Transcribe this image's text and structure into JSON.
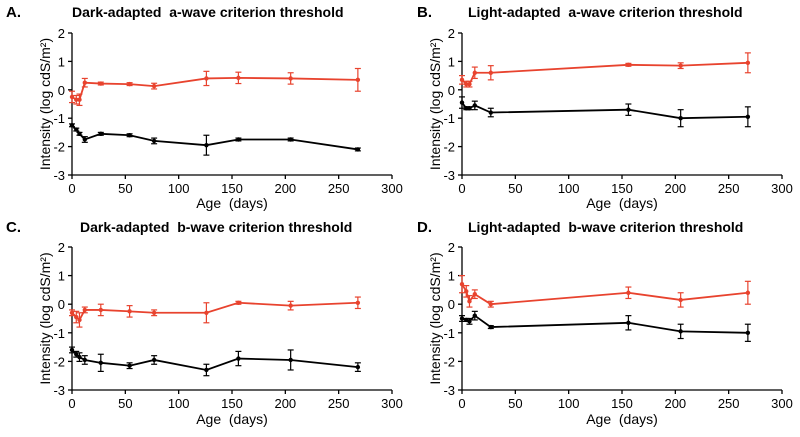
{
  "chart_data": [
    {
      "panel_letter": "A.",
      "type": "line",
      "title": "Dark-adapted  a-wave criterion threshold",
      "xlabel": "Age  (days)",
      "ylabel": "Intensity (log cdS/m²)",
      "xlim": [
        0,
        300
      ],
      "ylim": [
        -3,
        2
      ],
      "xticks": [
        "0",
        "50",
        "100",
        "150",
        "200",
        "250",
        "300"
      ],
      "yticks": [
        "-3",
        "-2",
        "-1",
        "0",
        "1",
        "2"
      ],
      "colors": {
        "red": "#e8432e",
        "black": "#000000"
      },
      "series": [
        {
          "name": "red",
          "x": [
            0,
            4,
            7,
            12,
            27,
            54,
            77,
            126,
            156,
            205,
            268
          ],
          "y": [
            -0.25,
            -0.35,
            -0.35,
            0.25,
            0.22,
            0.2,
            0.13,
            0.4,
            0.42,
            0.4,
            0.35
          ],
          "err": [
            0.2,
            0.15,
            0.2,
            0.15,
            0.05,
            0.05,
            0.1,
            0.25,
            0.2,
            0.2,
            0.4
          ]
        },
        {
          "name": "black",
          "x": [
            0,
            4,
            7,
            12,
            27,
            54,
            77,
            126,
            156,
            205,
            268
          ],
          "y": [
            -1.25,
            -1.4,
            -1.55,
            -1.75,
            -1.55,
            -1.6,
            -1.8,
            -1.95,
            -1.75,
            -1.75,
            -2.1
          ],
          "err": [
            0.05,
            0.05,
            0.05,
            0.1,
            0.05,
            0.05,
            0.1,
            0.35,
            0.05,
            0.05,
            0.05
          ]
        }
      ]
    },
    {
      "panel_letter": "B.",
      "type": "line",
      "title": "Light-adapted  a-wave criterion threshold",
      "xlabel": "Age  (days)",
      "ylabel": "Intensity (log cdS/m²)",
      "xlim": [
        0,
        300
      ],
      "ylim": [
        -3,
        2
      ],
      "xticks": [
        "0",
        "50",
        "100",
        "150",
        "200",
        "250",
        "300"
      ],
      "yticks": [
        "-3",
        "-2",
        "-1",
        "0",
        "1",
        "2"
      ],
      "colors": {
        "red": "#e8432e",
        "black": "#000000"
      },
      "series": [
        {
          "name": "red",
          "x": [
            0,
            4,
            7,
            12,
            27,
            156,
            205,
            268
          ],
          "y": [
            0.35,
            0.2,
            0.2,
            0.6,
            0.6,
            0.88,
            0.85,
            0.95
          ],
          "err": [
            0.15,
            0.1,
            0.1,
            0.2,
            0.25,
            0.05,
            0.1,
            0.35
          ]
        },
        {
          "name": "black",
          "x": [
            0,
            4,
            7,
            12,
            27,
            156,
            205,
            268
          ],
          "y": [
            -0.45,
            -0.65,
            -0.65,
            -0.55,
            -0.8,
            -0.7,
            -1.0,
            -0.95
          ],
          "err": [
            0.2,
            0.05,
            0.05,
            0.15,
            0.15,
            0.2,
            0.3,
            0.35
          ]
        }
      ]
    },
    {
      "panel_letter": "C.",
      "type": "line",
      "title": "Dark-adapted  b-wave criterion threshold",
      "xlabel": "Age  (days)",
      "ylabel": "Intensity (log cdS/m²)",
      "xlim": [
        0,
        300
      ],
      "ylim": [
        -3,
        2
      ],
      "xticks": [
        "0",
        "50",
        "100",
        "150",
        "200",
        "250",
        "300"
      ],
      "yticks": [
        "-3",
        "-2",
        "-1",
        "0",
        "1",
        "2"
      ],
      "colors": {
        "red": "#e8432e",
        "black": "#000000"
      },
      "series": [
        {
          "name": "red",
          "x": [
            0,
            4,
            7,
            12,
            27,
            54,
            77,
            126,
            156,
            205,
            268
          ],
          "y": [
            -0.3,
            -0.45,
            -0.55,
            -0.2,
            -0.2,
            -0.25,
            -0.3,
            -0.3,
            0.05,
            -0.05,
            0.05
          ],
          "err": [
            0.1,
            0.2,
            0.25,
            0.1,
            0.2,
            0.2,
            0.1,
            0.35,
            0.05,
            0.15,
            0.2
          ]
        },
        {
          "name": "black",
          "x": [
            0,
            4,
            7,
            12,
            27,
            54,
            77,
            126,
            156,
            205,
            268
          ],
          "y": [
            -1.6,
            -1.75,
            -1.85,
            -1.95,
            -2.05,
            -2.15,
            -1.95,
            -2.3,
            -1.9,
            -1.95,
            -2.2
          ],
          "err": [
            0.1,
            0.1,
            0.15,
            0.15,
            0.3,
            0.1,
            0.15,
            0.2,
            0.25,
            0.35,
            0.15
          ]
        }
      ]
    },
    {
      "panel_letter": "D.",
      "type": "line",
      "title": "Light-adapted  b-wave criterion threshold",
      "xlabel": "Age  (days)",
      "ylabel": "Intensity (log cdS/m²)",
      "xlim": [
        0,
        300
      ],
      "ylim": [
        -3,
        2
      ],
      "xticks": [
        "0",
        "50",
        "100",
        "150",
        "200",
        "250",
        "300"
      ],
      "yticks": [
        "-3",
        "-2",
        "-1",
        "0",
        "1",
        "2"
      ],
      "colors": {
        "red": "#e8432e",
        "black": "#000000"
      },
      "series": [
        {
          "name": "red",
          "x": [
            0,
            4,
            7,
            12,
            27,
            156,
            205,
            268
          ],
          "y": [
            0.7,
            0.45,
            0.1,
            0.35,
            0.0,
            0.4,
            0.15,
            0.4
          ],
          "err": [
            0.3,
            0.2,
            0.2,
            0.15,
            0.1,
            0.2,
            0.25,
            0.4
          ]
        },
        {
          "name": "black",
          "x": [
            0,
            4,
            7,
            12,
            27,
            156,
            205,
            268
          ],
          "y": [
            -0.5,
            -0.55,
            -0.6,
            -0.4,
            -0.8,
            -0.65,
            -0.95,
            -1.0
          ],
          "err": [
            0.1,
            0.05,
            0.1,
            0.15,
            0.05,
            0.25,
            0.25,
            0.3
          ]
        }
      ]
    }
  ]
}
